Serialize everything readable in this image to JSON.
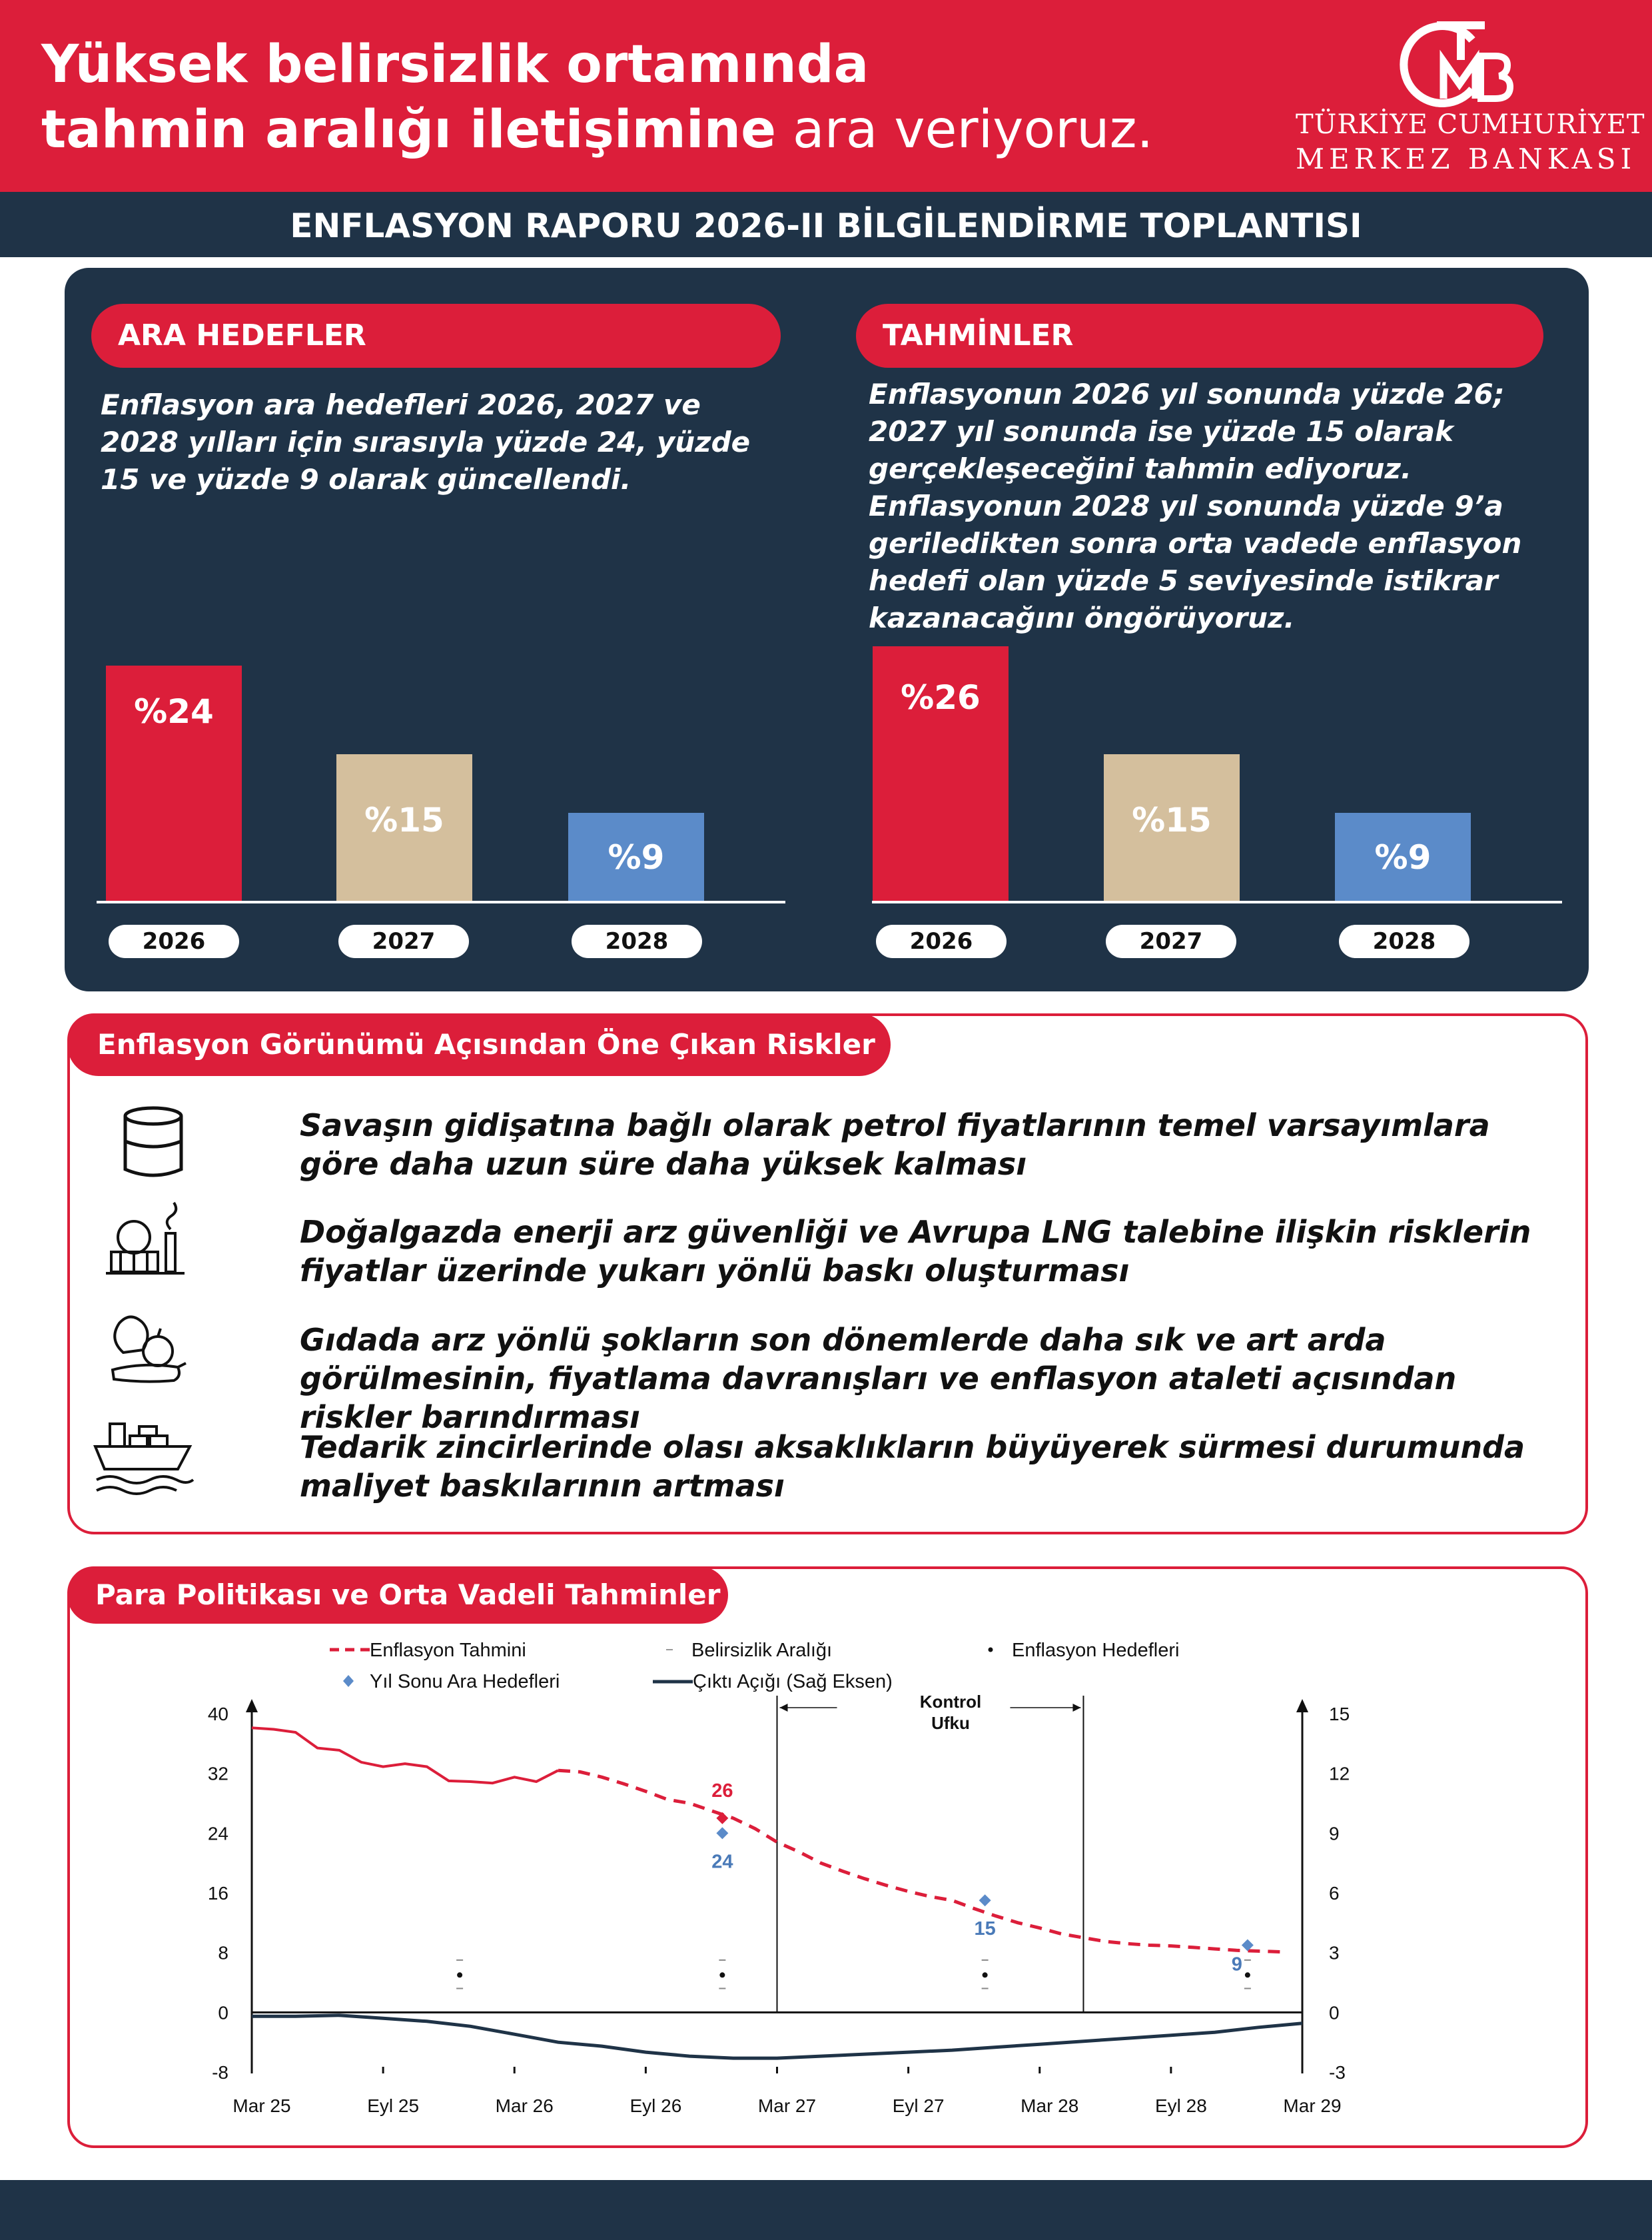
{
  "header": {
    "headline_line1": "Yüksek belirsizlik ortamında",
    "headline_line2_bold": "tahmin aralığı iletişimine",
    "headline_line2_regular": " ara veriyoruz.",
    "logo_name_line1": "TÜRKİYE CUMHURİYET",
    "logo_name_line2": "MERKEZ BANKASI",
    "logo_monogram": "TCMB"
  },
  "subtitle": "ENFLASYON RAPORU 2026-II BİLGİLENDİRME TOPLANTISI",
  "ara_hedefler": {
    "title": "ARA HEDEFLER",
    "text": "Enflasyon ara hedefleri 2026, 2027 ve 2028 yılları için sırasıyla yüzde 24, yüzde 15 ve yüzde 9 olarak güncellendi.",
    "bars": [
      {
        "year": "2026",
        "value": 24,
        "label": "%24",
        "color": "#dc1e3a"
      },
      {
        "year": "2027",
        "value": 15,
        "label": "%15",
        "color": "#d4bf9d"
      },
      {
        "year": "2028",
        "value": 9,
        "label": "%9",
        "color": "#5b8bc9"
      }
    ]
  },
  "tahminler": {
    "title": "TAHMİNLER",
    "text": "Enflasyonun 2026 yıl sonunda yüzde 26; 2027 yıl sonunda ise yüzde 15 olarak gerçekleşeceğini tahmin ediyoruz. Enflasyonun 2028 yıl sonunda yüzde 9’a geriledikten sonra orta vadede enflasyon hedefi olan yüzde 5 seviyesinde istikrar kazanacağını öngörüyoruz.",
    "bars": [
      {
        "year": "2026",
        "value": 26,
        "label": "%26",
        "color": "#dc1e3a"
      },
      {
        "year": "2027",
        "value": 15,
        "label": "%15",
        "color": "#d4bf9d"
      },
      {
        "year": "2028",
        "value": 9,
        "label": "%9",
        "color": "#5b8bc9"
      }
    ]
  },
  "risks": {
    "title": "Enflasyon Görünümü Açısından Öne Çıkan Riskler",
    "items": [
      {
        "icon": "oil-barrel-icon",
        "text": "Savaşın gidişatına bağlı olarak petrol fiyatlarının temel varsayımlara göre daha uzun süre daha yüksek kalması"
      },
      {
        "icon": "gas-plant-icon",
        "text": "Doğalgazda enerji arz güvenliği ve Avrupa LNG talebine ilişkin risklerin fiyatlar üzerinde yukarı yönlü baskı oluşturması"
      },
      {
        "icon": "vegetables-icon",
        "text": "Gıdada arz yönlü şokların son dönemlerde daha sık ve art arda görülmesinin, fiyatlama davranışları ve enflasyon ataleti açısından riskler barındırması"
      },
      {
        "icon": "cargo-ship-icon",
        "text": "Tedarik zincirlerinde olası aksaklıkların büyüyerek sürmesi durumunda maliyet baskılarının artması"
      }
    ]
  },
  "chart_section": {
    "title": "Para Politikası ve Orta Vadeli Tahminler"
  },
  "chart_data": {
    "type": "line",
    "legend": [
      {
        "name": "Enflasyon Tahmini",
        "style": "dashed-red"
      },
      {
        "name": "Belirsizlik Aralığı",
        "style": "grey-dash"
      },
      {
        "name": "Enflasyon Hedefleri",
        "style": "black-dot"
      },
      {
        "name": "Yıl Sonu Ara Hedefleri",
        "style": "blue-diamond"
      },
      {
        "name": "Çıktı Açığı (Sağ Eksen)",
        "style": "navy-line"
      }
    ],
    "x_ticks": [
      "Mar 25",
      "Eyl 25",
      "Mar 26",
      "Eyl 26",
      "Mar 27",
      "Eyl 27",
      "Mar 28",
      "Eyl 28",
      "Mar 29"
    ],
    "x_range": [
      0,
      48
    ],
    "y_left": {
      "ticks": [
        -8,
        0,
        8,
        16,
        24,
        32,
        40
      ],
      "range": [
        -8,
        40
      ]
    },
    "y_right": {
      "ticks": [
        -3,
        0,
        3,
        6,
        9,
        12,
        15
      ],
      "range": [
        -3,
        15
      ]
    },
    "control_horizon_label": [
      "Kontrol",
      "Ufku"
    ],
    "control_horizon_x": [
      24,
      38
    ],
    "actual_inflation": [
      [
        0,
        38.1
      ],
      [
        1,
        37.9
      ],
      [
        2,
        37.5
      ],
      [
        3,
        35.4
      ],
      [
        4,
        35.1
      ],
      [
        5,
        33.5
      ],
      [
        6,
        32.9
      ],
      [
        7,
        33.3
      ],
      [
        8,
        32.9
      ],
      [
        9,
        31
      ],
      [
        10,
        30.9
      ],
      [
        11,
        30.7
      ],
      [
        12,
        31.5
      ],
      [
        13,
        30.9
      ],
      [
        14,
        32.4
      ]
    ],
    "forecast_inflation": [
      [
        14,
        32.4
      ],
      [
        15,
        32.2
      ],
      [
        16,
        31.5
      ],
      [
        17,
        30.6
      ],
      [
        18,
        29.6
      ],
      [
        19,
        28.5
      ],
      [
        20,
        28
      ],
      [
        21,
        27
      ],
      [
        22,
        26
      ],
      [
        23,
        24.6
      ],
      [
        24,
        22.8
      ],
      [
        25,
        21.5
      ],
      [
        26,
        20
      ],
      [
        27,
        18.9
      ],
      [
        28,
        17.9
      ],
      [
        29,
        17
      ],
      [
        30,
        16.2
      ],
      [
        31,
        15.5
      ],
      [
        32,
        15
      ],
      [
        33,
        13.9
      ],
      [
        34,
        12.9
      ],
      [
        35,
        12
      ],
      [
        36,
        11.3
      ],
      [
        37,
        10.5
      ],
      [
        38,
        10
      ],
      [
        39,
        9.5
      ],
      [
        40,
        9.2
      ],
      [
        41,
        9
      ],
      [
        42,
        8.9
      ],
      [
        43,
        8.7
      ],
      [
        44,
        8.5
      ],
      [
        45,
        8.3
      ],
      [
        46,
        8.2
      ],
      [
        47,
        8.1
      ]
    ],
    "output_gap": [
      [
        0,
        -0.2
      ],
      [
        2,
        -0.2
      ],
      [
        4,
        -0.15
      ],
      [
        6,
        -0.3
      ],
      [
        8,
        -0.45
      ],
      [
        10,
        -0.7
      ],
      [
        12,
        -1.1
      ],
      [
        14,
        -1.5
      ],
      [
        16,
        -1.7
      ],
      [
        18,
        -2
      ],
      [
        20,
        -2.2
      ],
      [
        22,
        -2.3
      ],
      [
        24,
        -2.3
      ],
      [
        26,
        -2.2
      ],
      [
        28,
        -2.1
      ],
      [
        30,
        -2.0
      ],
      [
        32,
        -1.9
      ],
      [
        34,
        -1.75
      ],
      [
        36,
        -1.6
      ],
      [
        38,
        -1.45
      ],
      [
        40,
        -1.3
      ],
      [
        42,
        -1.15
      ],
      [
        44,
        -1.0
      ],
      [
        46,
        -0.75
      ],
      [
        48,
        -0.55
      ]
    ],
    "year_end_forecasts": [
      {
        "x": 21.5,
        "y": 26,
        "label": "26"
      }
    ],
    "interim_targets": [
      {
        "x": 21.5,
        "y": 24,
        "label": "24"
      },
      {
        "x": 33.5,
        "y": 15,
        "label": "15"
      },
      {
        "x": 45.5,
        "y": 9,
        "label": "9"
      }
    ],
    "inflation_targets": [
      {
        "x": 9.5,
        "y": 5
      },
      {
        "x": 21.5,
        "y": 5
      },
      {
        "x": 33.5,
        "y": 5
      },
      {
        "x": 45.5,
        "y": 5
      }
    ],
    "uncertainty_band": [
      {
        "x": 9.5,
        "low": 3.2,
        "high": 7
      },
      {
        "x": 21.5,
        "low": 3.2,
        "high": 7
      },
      {
        "x": 33.5,
        "low": 3.2,
        "high": 7
      },
      {
        "x": 45.5,
        "low": 3.2,
        "high": 7
      }
    ]
  }
}
